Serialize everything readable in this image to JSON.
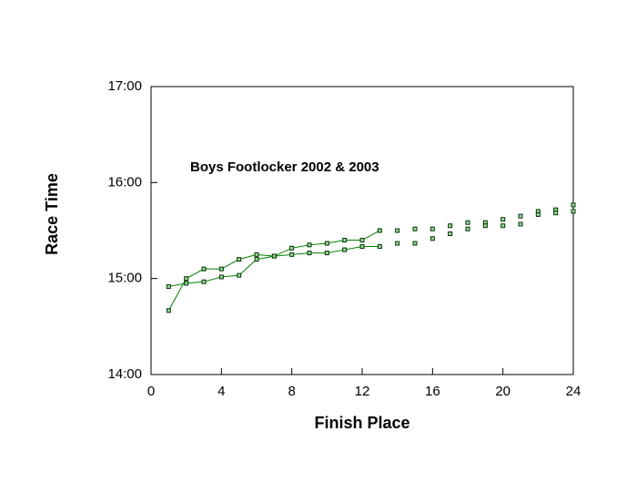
{
  "chart_data": {
    "type": "line",
    "title": "Boys Footlocker 2002 & 2003",
    "x_label": "Finish Place",
    "y_label": "Race Time",
    "xlim": [
      0,
      24
    ],
    "xticks": [
      0,
      4,
      8,
      12,
      16,
      20,
      24
    ],
    "ylim": [
      840,
      1020
    ],
    "yticks": [
      {
        "value": 840,
        "label": "14:00"
      },
      {
        "value": 900,
        "label": "15:00"
      },
      {
        "value": 960,
        "label": "16:00"
      },
      {
        "value": 1020,
        "label": "17:00"
      }
    ],
    "series": [
      {
        "color": "#008000",
        "line": true,
        "x": [
          1,
          2,
          3,
          4,
          5,
          6,
          7,
          8,
          9,
          10,
          11,
          12,
          13
        ],
        "values": [
          880,
          900,
          906,
          906,
          912,
          915,
          914,
          919,
          921,
          922,
          924,
          924,
          930
        ]
      },
      {
        "color": "#008000",
        "line": true,
        "x": [
          1,
          2,
          3,
          4,
          5,
          6,
          7,
          8,
          9,
          10,
          11,
          12,
          13
        ],
        "values": [
          895,
          897,
          898,
          901,
          902,
          912,
          914,
          915,
          916,
          916,
          918,
          920,
          920
        ]
      },
      {
        "color": "#008000",
        "line": false,
        "x": [
          14,
          15,
          16,
          17,
          18,
          19,
          20,
          21,
          22,
          23,
          24
        ],
        "values": [
          930,
          931,
          931,
          933,
          935,
          935,
          937,
          939,
          942,
          943,
          946
        ]
      },
      {
        "color": "#008000",
        "line": false,
        "x": [
          14,
          15,
          16,
          17,
          18,
          19,
          20,
          21,
          22,
          23,
          24
        ],
        "values": [
          922,
          922,
          925,
          928,
          931,
          933,
          933,
          934,
          940,
          941,
          942
        ]
      }
    ]
  }
}
